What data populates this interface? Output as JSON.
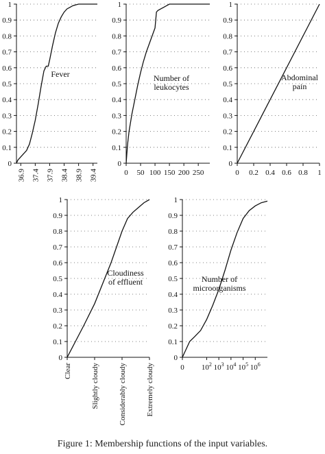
{
  "caption": "Figure 1: Membership functions of the input variables.",
  "chart_data": [
    {
      "type": "line",
      "annotation": "Fever",
      "ylim": [
        0,
        1
      ],
      "y_ticks": [
        "0",
        "0.1",
        "0.2",
        "0.3",
        "0.4",
        "0.5",
        "0.6",
        "0.7",
        "0.8",
        "0.9",
        "1"
      ],
      "x_ticks": [
        "36.9",
        "37.4",
        "37.9",
        "38.4",
        "38.9",
        "39.4"
      ],
      "xlim": [
        36.75,
        39.55
      ],
      "grid": "dotted-horizontal",
      "series": [
        {
          "x": [
            36.75,
            36.8,
            36.9,
            37.0,
            37.1,
            37.2,
            37.3,
            37.4,
            37.5,
            37.6,
            37.7,
            37.78,
            37.85,
            37.9,
            38.0,
            38.1,
            38.2,
            38.3,
            38.4,
            38.5,
            38.6,
            38.7,
            38.8,
            38.9,
            39.1,
            39.4,
            39.55
          ],
          "y": [
            0.0,
            0.02,
            0.04,
            0.06,
            0.08,
            0.12,
            0.19,
            0.27,
            0.37,
            0.48,
            0.58,
            0.61,
            0.61,
            0.65,
            0.74,
            0.82,
            0.88,
            0.92,
            0.95,
            0.97,
            0.98,
            0.99,
            0.995,
            1.0,
            1.0,
            1.0,
            1.0
          ]
        }
      ]
    },
    {
      "type": "line",
      "annotation": "Number of\nleukocytes",
      "ylim": [
        0,
        1
      ],
      "y_ticks": [
        "0",
        "0.1",
        "0.2",
        "0.3",
        "0.4",
        "0.5",
        "0.6",
        "0.7",
        "0.8",
        "0.9",
        "1"
      ],
      "x_ticks": [
        "0",
        "50",
        "100",
        "150",
        "200",
        "250"
      ],
      "xlim": [
        0,
        290
      ],
      "grid": "dotted-horizontal",
      "series": [
        {
          "x": [
            0,
            2,
            5,
            10,
            20,
            30,
            40,
            50,
            60,
            70,
            80,
            90,
            98,
            100,
            105,
            110,
            120,
            130,
            140,
            150,
            200,
            250,
            290
          ],
          "y": [
            0.0,
            0.05,
            0.12,
            0.2,
            0.31,
            0.4,
            0.49,
            0.57,
            0.64,
            0.7,
            0.75,
            0.8,
            0.84,
            0.85,
            0.95,
            0.96,
            0.97,
            0.98,
            0.99,
            1.0,
            1.0,
            1.0,
            1.0
          ]
        }
      ]
    },
    {
      "type": "line",
      "annotation": "Abdominal\npain",
      "ylim": [
        0,
        1
      ],
      "y_ticks": [
        "0",
        "0.1",
        "0.2",
        "0.3",
        "0.4",
        "0.5",
        "0.6",
        "0.7",
        "0.8",
        "0.9",
        "1"
      ],
      "x_ticks": [
        "0",
        "0.2",
        "0.4",
        "0.6",
        "0.8",
        "1"
      ],
      "xlim": [
        0,
        1
      ],
      "grid": "dotted-horizontal",
      "series": [
        {
          "x": [
            0,
            1
          ],
          "y": [
            0,
            1
          ]
        }
      ]
    },
    {
      "type": "line",
      "annotation": "Cloudiness\nof effluent",
      "ylim": [
        0,
        1
      ],
      "y_ticks": [
        "0",
        "0.1",
        "0.2",
        "0.3",
        "0.4",
        "0.5",
        "0.6",
        "0.7",
        "0.8",
        "0.9",
        "1"
      ],
      "x_ticks": [
        "Clear",
        "Slightly cloudy",
        "Considerably cloudy",
        "Extremely cloudy"
      ],
      "xlim": [
        0,
        3
      ],
      "grid": "dotted-horizontal",
      "series": [
        {
          "x": [
            0,
            0.3,
            0.6,
            1.0,
            1.3,
            1.6,
            1.8,
            2.0,
            2.2,
            2.4,
            2.6,
            2.8,
            3.0
          ],
          "y": [
            0.0,
            0.1,
            0.2,
            0.34,
            0.47,
            0.6,
            0.7,
            0.8,
            0.88,
            0.92,
            0.95,
            0.98,
            1.0
          ]
        }
      ]
    },
    {
      "type": "line",
      "annotation": "Number of\nmicroorganisms",
      "ylim": [
        0,
        1
      ],
      "y_ticks": [
        "0",
        "0.1",
        "0.2",
        "0.3",
        "0.4",
        "0.5",
        "0.6",
        "0.7",
        "0.8",
        "0.9",
        "1"
      ],
      "x_ticks": [
        {
          "base": "0",
          "exp": ""
        },
        {
          "base": "10",
          "exp": "2"
        },
        {
          "base": "10",
          "exp": "3"
        },
        {
          "base": "10",
          "exp": "4"
        },
        {
          "base": "10",
          "exp": "5"
        },
        {
          "base": "10",
          "exp": "6"
        }
      ],
      "x_tick_positions": [
        0,
        2,
        3,
        4,
        5,
        6
      ],
      "x_scale": "log",
      "xlim": [
        0,
        7
      ],
      "grid": "dotted-horizontal",
      "series": [
        {
          "x": [
            0,
            0.3,
            0.6,
            1.0,
            1.5,
            2.0,
            2.5,
            3.0,
            3.5,
            4.0,
            4.5,
            5.0,
            5.5,
            6.0,
            6.5,
            7.0
          ],
          "y": [
            0.0,
            0.05,
            0.1,
            0.13,
            0.17,
            0.24,
            0.33,
            0.43,
            0.55,
            0.68,
            0.79,
            0.88,
            0.93,
            0.96,
            0.98,
            0.99
          ]
        }
      ]
    }
  ]
}
